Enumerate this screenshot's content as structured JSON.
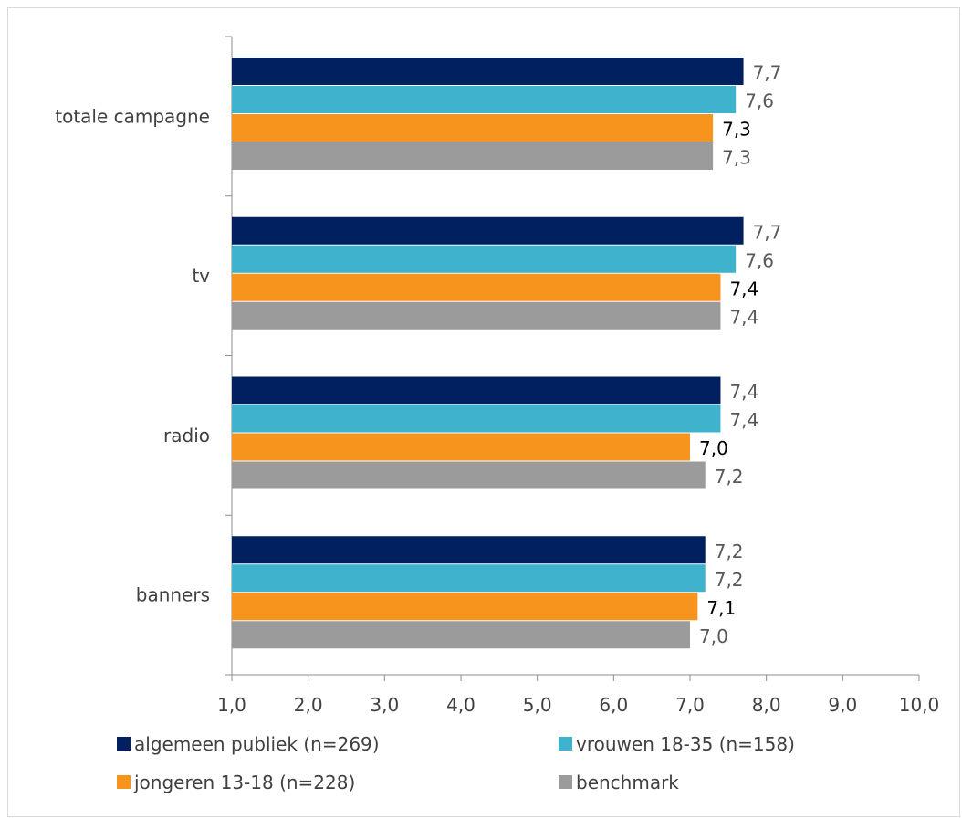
{
  "chart_data": {
    "type": "bar",
    "orientation": "horizontal",
    "categories": [
      "totale campagne",
      "tv",
      "radio",
      "banners"
    ],
    "series": [
      {
        "name": "algemeen publiek (n=269)",
        "color": "#002060",
        "label_color": "#595959",
        "values": [
          7.7,
          7.7,
          7.4,
          7.2
        ],
        "labels": [
          "7,7",
          "7,7",
          "7,4",
          "7,2"
        ]
      },
      {
        "name": "vrouwen 18-35 (n=158)",
        "color": "#3FB2CE",
        "label_color": "#595959",
        "values": [
          7.6,
          7.6,
          7.4,
          7.2
        ],
        "labels": [
          "7,6",
          "7,6",
          "7,4",
          "7,2"
        ]
      },
      {
        "name": "jongeren 13-18 (n=228)",
        "color": "#F7941D",
        "label_color": "#000000",
        "values": [
          7.3,
          7.4,
          7.0,
          7.1
        ],
        "labels": [
          "7,3",
          "7,4",
          "7,0",
          "7,1"
        ]
      },
      {
        "name": "benchmark",
        "color": "#9B9B9B",
        "label_color": "#595959",
        "values": [
          7.3,
          7.4,
          7.2,
          7.0
        ],
        "labels": [
          "7,3",
          "7,4",
          "7,2",
          "7,0"
        ]
      }
    ],
    "xlim": [
      1,
      10
    ],
    "x_ticks": [
      1,
      2,
      3,
      4,
      5,
      6,
      7,
      8,
      9,
      10
    ],
    "x_tick_labels": [
      "1,0",
      "2,0",
      "3,0",
      "4,0",
      "5,0",
      "6,0",
      "7,0",
      "8,0",
      "9,0",
      "10,0"
    ],
    "title": "",
    "xlabel": "",
    "ylabel": "",
    "grid": false,
    "legend_position": "bottom"
  }
}
